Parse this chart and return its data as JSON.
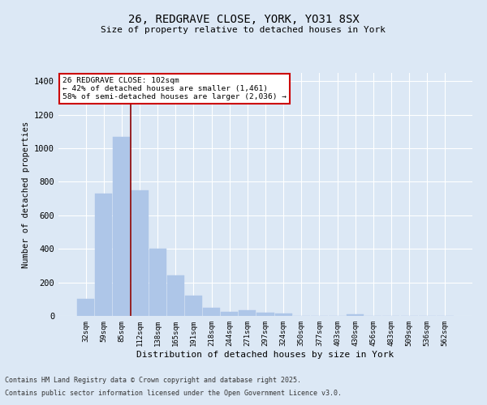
{
  "title1": "26, REDGRAVE CLOSE, YORK, YO31 8SX",
  "title2": "Size of property relative to detached houses in York",
  "xlabel": "Distribution of detached houses by size in York",
  "ylabel": "Number of detached properties",
  "categories": [
    "32sqm",
    "59sqm",
    "85sqm",
    "112sqm",
    "138sqm",
    "165sqm",
    "191sqm",
    "218sqm",
    "244sqm",
    "271sqm",
    "297sqm",
    "324sqm",
    "350sqm",
    "377sqm",
    "403sqm",
    "430sqm",
    "456sqm",
    "483sqm",
    "509sqm",
    "536sqm",
    "562sqm"
  ],
  "values": [
    100,
    730,
    1070,
    750,
    400,
    240,
    120,
    50,
    25,
    35,
    20,
    15,
    0,
    0,
    0,
    10,
    0,
    0,
    0,
    0,
    0
  ],
  "bar_color": "#aec6e8",
  "bar_edge_color": "#aec6e8",
  "red_line_x": 2.5,
  "red_line_color": "#8b0000",
  "annotation_title": "26 REDGRAVE CLOSE: 102sqm",
  "annotation_line1": "← 42% of detached houses are smaller (1,461)",
  "annotation_line2": "58% of semi-detached houses are larger (2,036) →",
  "annotation_box_color": "#ffffff",
  "annotation_box_edge": "#cc0000",
  "ylim": [
    0,
    1450
  ],
  "yticks": [
    0,
    200,
    400,
    600,
    800,
    1000,
    1200,
    1400
  ],
  "background_color": "#dce8f5",
  "footer1": "Contains HM Land Registry data © Crown copyright and database right 2025.",
  "footer2": "Contains public sector information licensed under the Open Government Licence v3.0."
}
